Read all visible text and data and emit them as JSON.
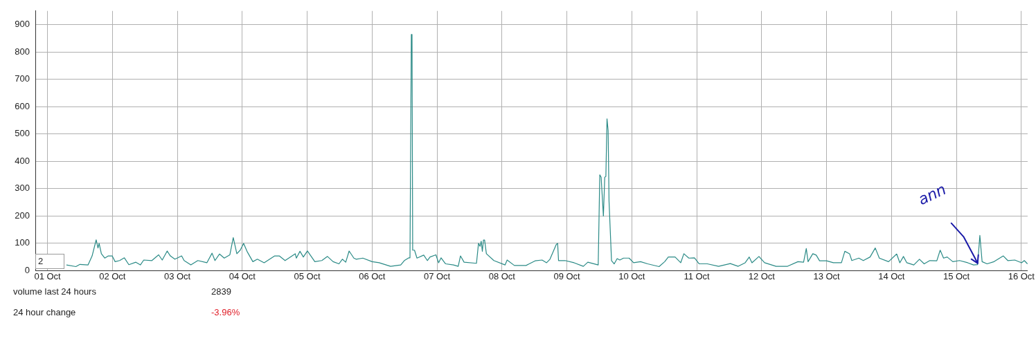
{
  "chart_data": {
    "type": "line",
    "grid": true,
    "legend": false,
    "marker": "none",
    "line_style": "solid",
    "xlim": [
      "--09-30T19:30",
      "--10-16T02:20"
    ],
    "xticks": [
      {
        "value": "--10-01",
        "label": "01 Oct"
      },
      {
        "value": "--10-02",
        "label": "02 Oct"
      },
      {
        "value": "--10-03",
        "label": "03 Oct"
      },
      {
        "value": "--10-04",
        "label": "04 Oct"
      },
      {
        "value": "--10-05",
        "label": "05 Oct"
      },
      {
        "value": "--10-06",
        "label": "06 Oct"
      },
      {
        "value": "--10-07",
        "label": "07 Oct"
      },
      {
        "value": "--10-08",
        "label": "08 Oct"
      },
      {
        "value": "--10-09",
        "label": "09 Oct"
      },
      {
        "value": "--10-10",
        "label": "10 Oct"
      },
      {
        "value": "--10-11",
        "label": "11 Oct"
      },
      {
        "value": "--10-12",
        "label": "12 Oct"
      },
      {
        "value": "--10-13",
        "label": "13 Oct"
      },
      {
        "value": "--10-14",
        "label": "14 Oct"
      },
      {
        "value": "--10-15",
        "label": "15 Oct"
      },
      {
        "value": "--10-16",
        "label": "16 Oct"
      }
    ],
    "ylim": [
      0,
      950
    ],
    "yticks": [
      0,
      100,
      200,
      300,
      400,
      500,
      600,
      700,
      800,
      900
    ],
    "annotations": [
      "2",
      "volume last 24 hours",
      "2839",
      "24 hour change",
      "-3.96%",
      {
        "text": "ann",
        "x": "--10-15T07:50",
        "y": 21
      }
    ],
    "series": [
      {
        "color": "#2a8a86",
        "x": [
          "--10-01T07:00",
          "--10-01T10:30",
          "--10-01T12:00",
          "--10-01T15:00",
          "--10-01T16:30",
          "--10-01T18:00",
          "--10-01T18:40",
          "--10-01T19:05",
          "--10-01T19:55",
          "--10-01T21:10",
          "--10-01T22:30",
          "--10-01T23:55",
          "--10-02T01:00",
          "--10-02T02:40",
          "--10-02T04:25",
          "--10-02T06:05",
          "--10-02T08:40",
          "--10-02T10:20",
          "--10-02T11:35",
          "--10-02T14:35",
          "--10-02T17:05",
          "--10-02T18:25",
          "--10-02T20:15",
          "--10-02T21:25",
          "--10-02T23:05",
          "--10-03T01:35",
          "--10-03T02:30",
          "--10-03T05:00",
          "--10-03T07:35",
          "--10-03T10:55",
          "--10-03T12:50",
          "--10-03T13:55",
          "--10-03T15:35",
          "--10-03T17:20",
          "--10-03T19:25",
          "--10-03T20:40",
          "--10-03T22:00",
          "--10-03T23:15",
          "--10-04T00:30",
          "--10-04T01:45",
          "--10-04T03:55",
          "--10-04T05:35",
          "--10-04T08:05",
          "--10-04T12:00",
          "--10-04T13:40",
          "--10-04T15:50",
          "--10-04T19:35",
          "--10-04T20:00",
          "--10-04T21:20",
          "--10-04T22:35",
          "--10-05T00:05",
          "--10-05T02:50",
          "--10-05T05:25",
          "--10-05T07:30",
          "--10-05T09:35",
          "--10-05T11:45",
          "--10-05T13:00",
          "--10-05T14:15",
          "--10-05T15:30",
          "--10-05T17:15",
          "--10-05T18:05",
          "--10-05T20:35",
          "--10-06T00:00",
          "--10-06T02:35",
          "--10-06T06:50",
          "--10-06T10:35",
          "--10-06T11:55",
          "--10-06T13:35",
          "--10-06T14:00",
          "--10-06T14:30",
          "--10-06T14:45",
          "--10-06T15:00",
          "--10-06T15:40",
          "--10-06T16:35",
          "--10-06T19:05",
          "--10-06T20:25",
          "--10-06T21:25",
          "--10-06T23:35",
          "--10-07T00:35",
          "--10-07T01:30",
          "--10-07T03:10",
          "--10-07T06:05",
          "--10-07T07:50",
          "--10-07T08:40",
          "--10-07T10:00",
          "--10-07T14:35",
          "--10-07T15:20",
          "--10-07T15:55",
          "--10-07T16:20",
          "--10-07T16:45",
          "--10-07T17:10",
          "--10-07T17:35",
          "--10-07T18:15",
          "--10-07T21:00",
          "--10-08T01:10",
          "--10-08T01:55",
          "--10-08T04:35",
          "--10-08T08:55",
          "--10-08T12:15",
          "--10-08T14:50",
          "--10-08T16:30",
          "--10-08T17:45",
          "--10-08T20:05",
          "--10-08T20:35",
          "--10-08T20:55",
          "--10-08T23:20",
          "--10-09T02:40",
          "--10-09T06:05",
          "--10-09T07:45",
          "--10-09T11:35",
          "--10-09T12:10",
          "--10-09T12:40",
          "--10-09T13:30",
          "--10-09T14:00",
          "--10-09T14:25",
          "--10-09T14:50",
          "--10-09T15:15",
          "--10-09T15:35",
          "--10-09T16:30",
          "--10-09T17:30",
          "--10-09T18:35",
          "--10-09T19:35",
          "--10-09T20:55",
          "--10-09T23:00",
          "--10-10T00:40",
          "--10-10T03:15",
          "--10-10T05:50",
          "--10-10T10:05",
          "--10-10T12:10",
          "--10-10T13:30",
          "--10-10T16:00",
          "--10-10T18:05",
          "--10-10T19:15",
          "--10-10T21:05",
          "--10-10T23:10",
          "--10-11T00:55",
          "--10-11T03:55",
          "--10-11T08:05",
          "--10-11T12:25",
          "--10-11T15:20",
          "--10-11T17:55",
          "--10-11T19:25",
          "--10-11T20:25",
          "--10-11T23:00",
          "--10-12T01:05",
          "--10-12T05:20",
          "--10-12T09:35",
          "--10-12T13:25",
          "--10-12T15:30",
          "--10-12T16:30",
          "--10-12T17:10",
          "--10-12T18:55",
          "--10-12T20:10",
          "--10-12T21:25",
          "--10-13T00:00",
          "--10-13T02:30",
          "--10-13T05:30",
          "--10-13T06:45",
          "--10-13T08:30",
          "--10-13T09:20",
          "--10-13T11:55",
          "--10-13T13:35",
          "--10-13T16:05",
          "--10-13T18:00",
          "--10-13T19:30",
          "--10-13T22:55",
          "--10-14T01:55",
          "--10-14T03:05",
          "--10-14T04:25",
          "--10-14T05:40",
          "--10-14T08:15",
          "--10-14T10:20",
          "--10-14T12:05",
          "--10-14T14:10",
          "--10-14T16:45",
          "--10-14T18:00",
          "--10-14T19:15",
          "--10-14T20:35",
          "--10-14T22:40",
          "--10-15T01:10",
          "--10-15T04:10",
          "--10-15T06:20",
          "--10-15T07:50",
          "--10-15T08:40",
          "--10-15T09:30",
          "--10-15T11:20",
          "--10-15T13:55",
          "--10-15T17:20",
          "--10-15T19:00",
          "--10-15T21:35",
          "--10-16T00:05",
          "--10-16T01:05",
          "--10-16T02:15"
        ],
        "values": [
          20,
          14,
          22,
          20,
          53,
          112,
          82,
          99,
          61,
          45,
          53,
          53,
          32,
          36,
          46,
          21,
          30,
          20,
          38,
          36,
          57,
          38,
          71,
          53,
          41,
          53,
          36,
          20,
          36,
          28,
          63,
          36,
          60,
          45,
          57,
          120,
          61,
          74,
          99,
          70,
          32,
          41,
          28,
          53,
          53,
          36,
          61,
          45,
          70,
          49,
          71,
          32,
          36,
          51,
          32,
          24,
          41,
          30,
          71,
          45,
          41,
          45,
          32,
          28,
          15,
          20,
          36,
          46,
          46,
          864,
          864,
          74,
          74,
          45,
          56,
          36,
          49,
          57,
          28,
          46,
          24,
          20,
          15,
          53,
          30,
          26,
          99,
          88,
          107,
          70,
          111,
          111,
          61,
          36,
          20,
          38,
          18,
          18,
          35,
          38,
          28,
          41,
          95,
          99,
          36,
          36,
          28,
          15,
          30,
          20,
          350,
          341,
          199,
          341,
          344,
          555,
          512,
          254,
          36,
          24,
          43,
          38,
          45,
          45,
          28,
          32,
          24,
          14,
          32,
          49,
          49,
          28,
          61,
          45,
          46,
          24,
          24,
          15,
          25,
          15,
          28,
          49,
          28,
          51,
          28,
          15,
          15,
          32,
          30,
          80,
          32,
          61,
          56,
          35,
          35,
          28,
          28,
          70,
          61,
          36,
          45,
          36,
          49,
          82,
          45,
          32,
          60,
          28,
          51,
          28,
          20,
          41,
          24,
          36,
          35,
          74,
          45,
          49,
          32,
          36,
          28,
          20,
          21,
          128,
          32,
          24,
          32,
          53,
          36,
          38,
          28,
          36,
          24
        ]
      }
    ]
  }
}
